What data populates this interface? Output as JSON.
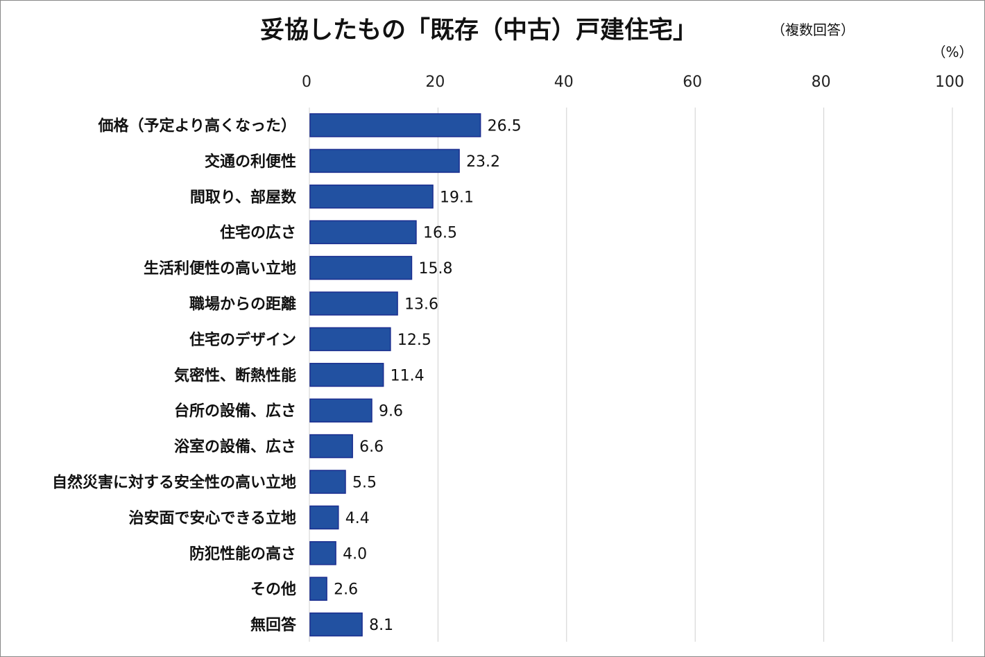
{
  "chart_data": {
    "type": "bar",
    "orientation": "horizontal",
    "title": "妥協したもの「既存（中古）戸建住宅」",
    "subtitle": "（複数回答）",
    "unit_label": "（%）",
    "xlim": [
      0,
      100
    ],
    "ticks": [
      0,
      20,
      40,
      60,
      80,
      100
    ],
    "grid": true,
    "categories": [
      "価格（予定より高くなった）",
      "交通の利便性",
      "間取り、部屋数",
      "住宅の広さ",
      "生活利便性の高い立地",
      "職場からの距離",
      "住宅のデザイン",
      "気密性、断熱性能",
      "台所の設備、広さ",
      "浴室の設備、広さ",
      "自然災害に対する安全性の高い立地",
      "治安面で安心できる立地",
      "防犯性能の高さ",
      "その他",
      "無回答"
    ],
    "values": [
      26.5,
      23.2,
      19.1,
      16.5,
      15.8,
      13.6,
      12.5,
      11.4,
      9.6,
      6.6,
      5.5,
      4.4,
      4.0,
      2.6,
      8.1
    ],
    "value_labels": [
      "26.5",
      "23.2",
      "19.1",
      "16.5",
      "15.8",
      "13.6",
      "12.5",
      "11.4",
      "9.6",
      "6.6",
      "5.5",
      "4.4",
      "4.0",
      "2.6",
      "8.1"
    ],
    "bar_color": "#2251a1",
    "bar_border_color": "#1a2d8f"
  }
}
